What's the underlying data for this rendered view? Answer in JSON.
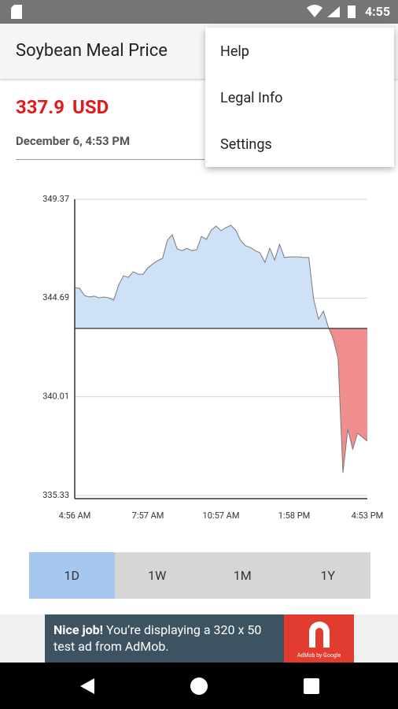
{
  "status_bar": {
    "time": "4:55"
  },
  "app_bar": {
    "title": "Soybean Meal Price"
  },
  "menu": {
    "items": [
      "Help",
      "Legal Info",
      "Settings"
    ]
  },
  "quote": {
    "price": "337.9",
    "currency": "USD",
    "timestamp": "December 6, 4:53 PM"
  },
  "chart_data": {
    "type": "area",
    "categories": [
      "4:56 AM",
      null,
      null,
      null,
      null,
      null,
      null,
      null,
      null,
      null,
      null,
      null,
      null,
      null,
      null,
      "7:57 AM",
      null,
      null,
      null,
      null,
      null,
      null,
      null,
      null,
      null,
      null,
      null,
      null,
      null,
      null,
      "10:57 AM",
      null,
      null,
      null,
      null,
      null,
      null,
      null,
      null,
      null,
      null,
      null,
      null,
      null,
      null,
      "1:58 PM",
      null,
      null,
      null,
      null,
      null,
      null,
      null,
      null,
      null,
      null,
      null,
      null,
      null,
      null,
      "4:53 PM"
    ],
    "values": [
      345.19,
      345.15,
      344.81,
      344.74,
      344.78,
      344.7,
      344.74,
      344.7,
      344.59,
      345.3,
      345.75,
      345.67,
      345.94,
      345.82,
      345.82,
      346.12,
      346.31,
      346.46,
      346.57,
      347.43,
      347.69,
      347.02,
      346.94,
      347.05,
      346.94,
      346.98,
      347.61,
      347.47,
      347.91,
      348.1,
      347.88,
      348.03,
      348.14,
      347.91,
      347.43,
      347.17,
      347.09,
      346.94,
      346.83,
      346.38,
      347.05,
      346.49,
      347.24,
      346.61,
      346.64,
      346.64,
      346.64,
      346.61,
      346.61,
      344.63,
      343.69,
      344.07,
      343.32,
      342.76,
      341.83,
      336.41,
      338.47,
      337.53,
      338.28,
      338.09,
      337.9
    ],
    "baseline": 343.25,
    "ylim": [
      335.33,
      349.37
    ],
    "yticks": [
      335.33,
      340.01,
      344.69,
      349.37
    ],
    "grid": true,
    "line_color": "#7a7a7a",
    "above_color": "#cfe1f6",
    "below_color": "#f08d8d"
  },
  "range_tabs": {
    "items": [
      "1D",
      "1W",
      "1M",
      "1Y"
    ],
    "selected": 0
  },
  "ad": {
    "headline": "Nice job!",
    "body": "You’re displaying a 320 x 50 test ad from AdMob.",
    "logo": "AdMob by Google"
  }
}
